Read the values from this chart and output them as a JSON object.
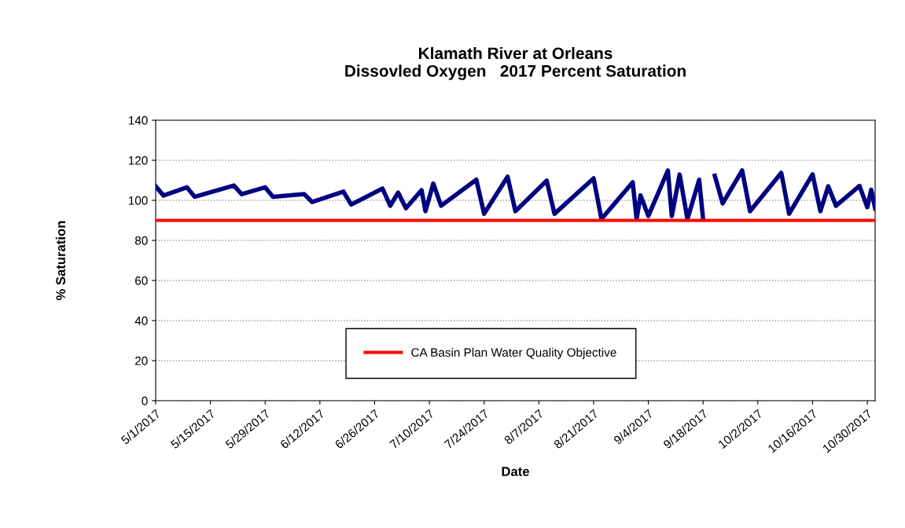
{
  "chart_data": {
    "type": "line",
    "title": "Klamath River at Orleans\nDissovled Oxygen   2017 Percent Saturation",
    "xlabel": "Date",
    "ylabel": "% Saturation",
    "x": [
      "2017-05-01",
      "2017-05-03",
      "2017-05-09",
      "2017-05-11",
      "2017-05-21",
      "2017-05-23",
      "2017-05-29",
      "2017-05-31",
      "2017-06-08",
      "2017-06-10",
      "2017-06-18",
      "2017-06-20",
      "2017-06-28",
      "2017-06-30",
      "2017-07-02",
      "2017-07-04",
      "2017-07-08",
      "2017-07-09",
      "2017-07-11",
      "2017-07-13",
      "2017-07-22",
      "2017-07-24",
      "2017-07-30",
      "2017-08-01",
      "2017-08-09",
      "2017-08-11",
      "2017-08-21",
      "2017-08-23",
      "2017-08-31",
      "2017-09-01",
      "2017-09-02",
      "2017-09-04",
      "2017-09-09",
      "2017-09-10",
      "2017-09-12",
      "2017-09-14",
      "2017-09-17",
      "2017-09-18",
      "2017-09-20",
      "2017-09-21",
      "2017-09-23",
      "2017-09-28",
      "2017-09-30",
      "2017-10-08",
      "2017-10-10",
      "2017-10-16",
      "2017-10-18",
      "2017-10-20",
      "2017-10-22",
      "2017-10-28",
      "2017-10-30",
      "2017-10-31",
      "2017-11-01"
    ],
    "series": [
      {
        "color": "#000080",
        "values": [
          107,
          102.4,
          106.5,
          101.8,
          107.4,
          103.1,
          106.5,
          101.8,
          103.1,
          99.2,
          104.4,
          97.9,
          105.9,
          97.3,
          103.9,
          96.1,
          105.1,
          94.6,
          108.4,
          97.3,
          110.3,
          93.3,
          111.8,
          94.6,
          109.8,
          93.3,
          111,
          90.7,
          109,
          90.7,
          102.5,
          92.2,
          114.9,
          92.2,
          112.9,
          90.7,
          110.3,
          90.7,
          null,
          112.3,
          98.5,
          114.9,
          94.6,
          113.7,
          93.3,
          113,
          94.6,
          107,
          97.3,
          107.2,
          96.6,
          105.3,
          96
        ]
      }
    ],
    "ref_lines": [
      {
        "axis": "y",
        "value": 90,
        "label": "CA Basin Plan Water Quality Objective",
        "color": "#ff0000"
      }
    ],
    "xlim": [
      "2017-05-01",
      "2017-11-01"
    ],
    "xticks": [
      {
        "value": "2017-05-01",
        "label": "5/1/2017"
      },
      {
        "value": "2017-05-15",
        "label": "5/15/2017"
      },
      {
        "value": "2017-05-29",
        "label": "5/29/2017"
      },
      {
        "value": "2017-06-12",
        "label": "6/12/2017"
      },
      {
        "value": "2017-06-26",
        "label": "6/26/2017"
      },
      {
        "value": "2017-07-10",
        "label": "7/10/2017"
      },
      {
        "value": "2017-07-24",
        "label": "7/24/2017"
      },
      {
        "value": "2017-08-07",
        "label": "8/7/2017"
      },
      {
        "value": "2017-08-21",
        "label": "8/21/2017"
      },
      {
        "value": "2017-09-04",
        "label": "9/4/2017"
      },
      {
        "value": "2017-09-18",
        "label": "9/18/2017"
      },
      {
        "value": "2017-10-02",
        "label": "10/2/2017"
      },
      {
        "value": "2017-10-16",
        "label": "10/16/2017"
      },
      {
        "value": "2017-10-30",
        "label": "10/30/2017"
      }
    ],
    "ylim": [
      0,
      140
    ],
    "yticks": [
      0,
      20,
      40,
      60,
      80,
      100,
      120,
      140
    ],
    "grid": "y",
    "legend": "bottom",
    "marker": "none",
    "line_style": "solid"
  }
}
